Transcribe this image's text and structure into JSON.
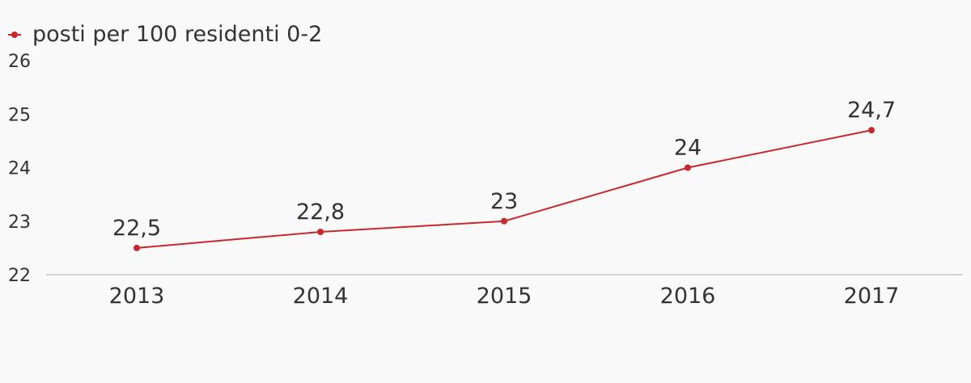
{
  "chart_data": {
    "type": "line",
    "categories": [
      "2013",
      "2014",
      "2015",
      "2016",
      "2017"
    ],
    "series": [
      {
        "name": "posti per 100 residenti 0-2",
        "values": [
          22.5,
          22.8,
          23,
          24,
          24.7
        ],
        "data_labels": [
          "22,5",
          "22,8",
          "23",
          "24",
          "24,7"
        ],
        "color": "#c8282d"
      }
    ],
    "y_ticks": [
      "22",
      "23",
      "24",
      "25",
      "26"
    ],
    "ylim": [
      22,
      26
    ],
    "grid": false,
    "legend": "top-left",
    "axis_color": "#d3d3d3",
    "background": "#f9f9f9"
  }
}
